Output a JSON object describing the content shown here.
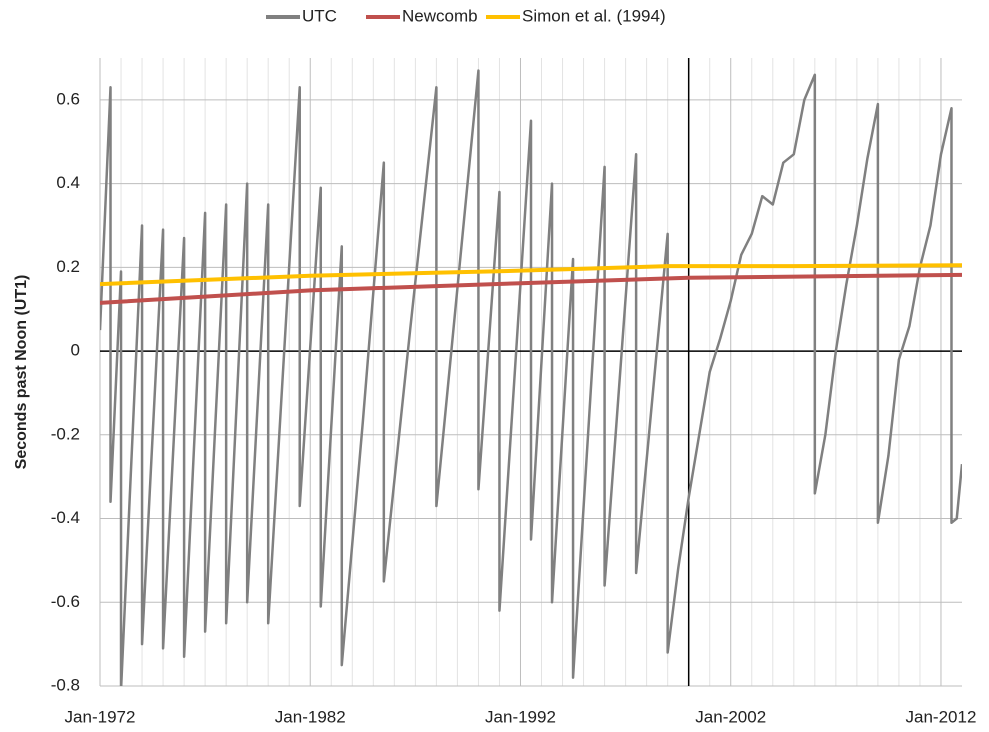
{
  "chart_data": {
    "type": "line",
    "ylabel": "Seconds past Noon (UT1)",
    "xlim": [
      1972,
      2013
    ],
    "xticks": [
      {
        "value": 1972,
        "label": "Jan-1972"
      },
      {
        "value": 1982,
        "label": "Jan-1982"
      },
      {
        "value": 1992,
        "label": "Jan-1992"
      },
      {
        "value": 2002,
        "label": "Jan-2002"
      },
      {
        "value": 2012,
        "label": "Jan-2012"
      }
    ],
    "xminorticks": [
      1973,
      1974,
      1975,
      1976,
      1977,
      1978,
      1979,
      1980,
      1981,
      1983,
      1984,
      1985,
      1986,
      1987,
      1988,
      1989,
      1990,
      1991,
      1993,
      1994,
      1995,
      1996,
      1997,
      1998,
      1999,
      2000,
      2001,
      2003,
      2004,
      2005,
      2006,
      2007,
      2008,
      2009,
      2010,
      2011
    ],
    "ylim": [
      -0.8,
      0.7
    ],
    "yticks": [
      -0.8,
      -0.6,
      -0.4,
      -0.2,
      0,
      0.2,
      0.4,
      0.6
    ],
    "yaxis_crosses_x": 2000,
    "grid": true,
    "legend": "top",
    "series": [
      {
        "name": "UTC",
        "color": "#808080",
        "x": [
          1972,
          1972.5,
          1972.5,
          1973,
          1973,
          1974,
          1974,
          1975,
          1975,
          1976,
          1976,
          1977,
          1977,
          1978,
          1978,
          1979,
          1979,
          1980,
          1980,
          1981.5,
          1981.5,
          1982.5,
          1982.5,
          1983.5,
          1983.5,
          1984.5,
          1985.5,
          1985.5,
          1986.75,
          1988,
          1988,
          1989,
          1990,
          1990,
          1991,
          1991,
          1992.5,
          1992.5,
          1993.5,
          1993.5,
          1994.5,
          1994.5,
          1996,
          1996,
          1997.5,
          1997.5,
          1999,
          1999,
          1999.5,
          2000,
          2000.5,
          2001,
          2001.5,
          2002,
          2002.5,
          2003,
          2003.5,
          2004,
          2004.5,
          2005,
          2005.5,
          2006,
          2006,
          2006.5,
          2007,
          2007.5,
          2008,
          2008.5,
          2009,
          2009,
          2009.5,
          2010,
          2010.5,
          2011,
          2011.5,
          2012,
          2012.5,
          2012.5,
          2012.75,
          2013
        ],
        "values": [
          0.05,
          0.63,
          -0.36,
          0.19,
          -0.81,
          0.3,
          -0.7,
          0.29,
          -0.71,
          0.27,
          -0.73,
          0.33,
          -0.67,
          0.35,
          -0.65,
          0.4,
          -0.6,
          0.35,
          -0.65,
          0.63,
          -0.37,
          0.39,
          -0.61,
          0.25,
          -0.75,
          -0.17,
          0.45,
          -0.55,
          0.05,
          0.63,
          -0.37,
          0.15,
          0.67,
          -0.33,
          0.38,
          -0.62,
          0.55,
          -0.45,
          0.4,
          -0.6,
          0.22,
          -0.78,
          0.44,
          -0.56,
          0.47,
          -0.53,
          0.28,
          -0.72,
          -0.52,
          -0.35,
          -0.2,
          -0.05,
          0.03,
          0.12,
          0.23,
          0.28,
          0.37,
          0.35,
          0.45,
          0.47,
          0.6,
          0.66,
          -0.34,
          -0.2,
          0.0,
          0.16,
          0.3,
          0.46,
          0.59,
          -0.41,
          -0.25,
          -0.02,
          0.06,
          0.2,
          0.3,
          0.47,
          0.58,
          -0.41,
          -0.4,
          -0.27
        ]
      },
      {
        "name": "Newcomb",
        "color": "#c0504d",
        "x": [
          1972,
          1982,
          1992,
          2000,
          2013
        ],
        "values": [
          0.115,
          0.145,
          0.162,
          0.175,
          0.182
        ]
      },
      {
        "name": "Simon et al. (1994)",
        "color": "#ffc000",
        "x": [
          1972,
          1982,
          1992,
          1999,
          2005,
          2013
        ],
        "values": [
          0.16,
          0.18,
          0.192,
          0.203,
          0.203,
          0.205
        ]
      }
    ]
  }
}
